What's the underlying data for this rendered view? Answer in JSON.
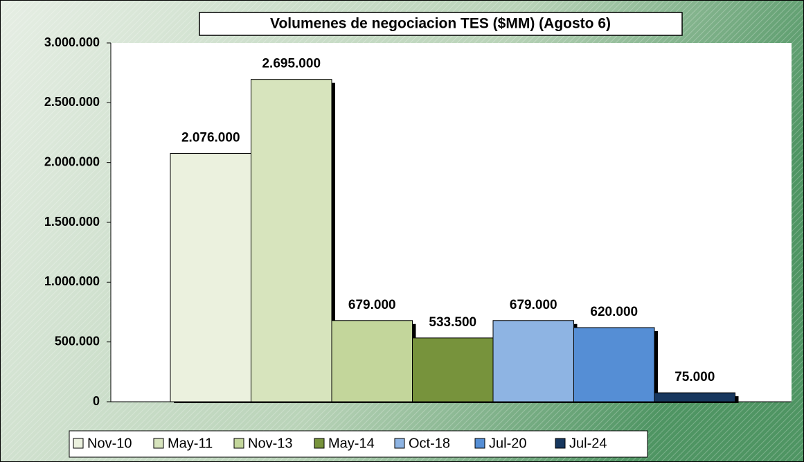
{
  "chart_data": {
    "type": "bar",
    "title": "Volumenes de negociacion TES ($MM) (Agosto 6)",
    "series": [
      {
        "name": "Nov-10",
        "color": "#ebf1de",
        "values": [
          2076000
        ],
        "value_labels": [
          "2.076.000"
        ]
      },
      {
        "name": "May-11",
        "color": "#d7e4bd",
        "values": [
          2695000
        ],
        "value_labels": [
          "2.695.000"
        ]
      },
      {
        "name": "Nov-13",
        "color": "#c3d69b",
        "values": [
          679000
        ],
        "value_labels": [
          "679.000"
        ]
      },
      {
        "name": "May-14",
        "color": "#77933c",
        "values": [
          533500
        ],
        "value_labels": [
          "533.500"
        ]
      },
      {
        "name": "Oct-18",
        "color": "#8eb4e3",
        "values": [
          679000
        ],
        "value_labels": [
          "679.000"
        ]
      },
      {
        "name": "Jul-20",
        "color": "#558ed5",
        "values": [
          620000
        ],
        "value_labels": [
          "620.000"
        ]
      },
      {
        "name": "Jul-24",
        "color": "#17375e",
        "values": [
          75000
        ],
        "value_labels": [
          "75.000"
        ]
      }
    ],
    "ylim": [
      0,
      3000000
    ],
    "yticks": [
      0,
      {
        "value": 500000,
        "label": "500.000"
      },
      {
        "value": 1000000,
        "label": "1.000.000"
      },
      {
        "value": 1500000,
        "label": "1.500.000"
      },
      {
        "value": 2000000,
        "label": "2.000.000"
      },
      {
        "value": 2500000,
        "label": "2.500.000"
      },
      {
        "value": 3000000,
        "label": "3.000.000"
      }
    ],
    "legend": "bottom"
  }
}
